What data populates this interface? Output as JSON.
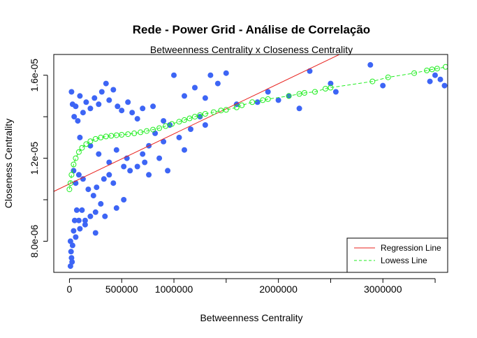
{
  "chart_data": {
    "type": "scatter",
    "title": "Rede - Power Grid - Análise de Correlação",
    "subtitle": "Betweenness Centrality x Closeness Centrality",
    "xlabel": "Betweenness Centrality",
    "ylabel": "Closeness Centrality",
    "xlim": [
      -150000,
      3620000
    ],
    "ylim": [
      6.5e-06,
      1.7e-05
    ],
    "x_ticks": [
      {
        "value": 0,
        "label": "0"
      },
      {
        "value": 500000,
        "label": "500000"
      },
      {
        "value": 1000000,
        "label": "1000000"
      },
      {
        "value": 1500000,
        "label": ""
      },
      {
        "value": 2000000,
        "label": "2000000"
      },
      {
        "value": 2500000,
        "label": ""
      },
      {
        "value": 3000000,
        "label": "3000000"
      },
      {
        "value": 3500000,
        "label": ""
      }
    ],
    "y_ticks": [
      {
        "value": 8e-06,
        "label": "8.0e-06"
      },
      {
        "value": 1e-05,
        "label": ""
      },
      {
        "value": 1.2e-05,
        "label": "1.2e-05"
      },
      {
        "value": 1.4e-05,
        "label": ""
      },
      {
        "value": 1.6e-05,
        "label": "1.6e-05"
      }
    ],
    "grid": false,
    "legend_position": "bottom-right",
    "colors": {
      "points": "#3d65f5",
      "regression": "#e8231f",
      "lowess": "#22ee22",
      "axis": "#000000"
    },
    "series": [
      {
        "name": "data",
        "kind": "points",
        "x": [
          20000,
          30000,
          45000,
          60000,
          80000,
          100000,
          130000,
          160000,
          200000,
          240000,
          280000,
          310000,
          350000,
          380000,
          420000,
          460000,
          500000,
          560000,
          600000,
          650000,
          700000,
          800000,
          900000,
          1000000,
          1100000,
          1200000,
          1300000,
          1350000,
          1420000,
          1500000,
          1600000,
          1800000,
          1900000,
          2000000,
          2100000,
          2200000,
          2300000,
          2500000,
          2550000,
          2880000,
          3000000,
          3450000,
          3500000,
          3550000,
          3590000,
          100000,
          200000,
          280000,
          380000,
          450000,
          550000,
          650000,
          700000,
          760000,
          820000,
          900000,
          960000,
          1050000,
          1100000,
          1160000,
          1250000,
          1300000,
          40000,
          60000,
          90000,
          130000,
          180000,
          230000,
          260000,
          330000,
          380000,
          420000,
          520000,
          580000,
          720000,
          760000,
          860000,
          940000,
          10000,
          15000,
          25000,
          40000,
          50000,
          70000,
          90000,
          120000,
          150000,
          200000,
          250000,
          300000,
          450000,
          520000,
          10000,
          20000,
          30000,
          60000,
          100000,
          150000,
          250000,
          340000
        ],
        "y": [
          1.52e-05,
          1.46e-05,
          1.4e-05,
          1.45e-05,
          1.38e-05,
          1.5e-05,
          1.42e-05,
          1.47e-05,
          1.44e-05,
          1.49e-05,
          1.46e-05,
          1.52e-05,
          1.56e-05,
          1.48e-05,
          1.53e-05,
          1.45e-05,
          1.43e-05,
          1.47e-05,
          1.42e-05,
          1.39e-05,
          1.44e-05,
          1.45e-05,
          1.38e-05,
          1.6e-05,
          1.5e-05,
          1.54e-05,
          1.49e-05,
          1.6e-05,
          1.56e-05,
          1.61e-05,
          1.46e-05,
          1.47e-05,
          1.52e-05,
          1.48e-05,
          1.5e-05,
          1.44e-05,
          1.62e-05,
          1.56e-05,
          1.52e-05,
          1.65e-05,
          1.55e-05,
          1.57e-05,
          1.6e-05,
          1.58e-05,
          1.55e-05,
          1.3e-05,
          1.26e-05,
          1.22e-05,
          1.18e-05,
          1.24e-05,
          1.2e-05,
          1.16e-05,
          1.22e-05,
          1.26e-05,
          1.32e-05,
          1.28e-05,
          1.36e-05,
          1.3e-05,
          1.24e-05,
          1.34e-05,
          1.4e-05,
          1.36e-05,
          1.14e-05,
          1.08e-05,
          1.12e-05,
          1.1e-05,
          1.05e-05,
          1.02e-05,
          1.06e-05,
          1.1e-05,
          1.12e-05,
          1.08e-05,
          1.16e-05,
          1.14e-05,
          1.18e-05,
          1.12e-05,
          1.2e-05,
          1.14e-05,
          8e-06,
          7.5e-06,
          7e-06,
          8.5e-06,
          9e-06,
          9.5e-06,
          9e-06,
          9.5e-06,
          8.8e-06,
          9.2e-06,
          9.4e-06,
          9.8e-06,
          9.6e-06,
          1e-05,
          6.8e-06,
          7.2e-06,
          7.8e-06,
          8.2e-06,
          8.6e-06,
          9e-06,
          8.4e-06,
          9.2e-06
        ]
      },
      {
        "name": "Regression Line",
        "kind": "line",
        "x": [
          -150000,
          3620000
        ],
        "y": [
          1.04e-05,
          1.95e-05
        ]
      },
      {
        "name": "Lowess Line",
        "kind": "lowess",
        "x": [
          0,
          10000,
          20000,
          40000,
          60000,
          90000,
          120000,
          160000,
          200000,
          250000,
          300000,
          350000,
          400000,
          450000,
          500000,
          560000,
          620000,
          680000,
          740000,
          800000,
          860000,
          920000,
          980000,
          1050000,
          1100000,
          1150000,
          1200000,
          1250000,
          1300000,
          1380000,
          1450000,
          1500000,
          1600000,
          1650000,
          1750000,
          1850000,
          1900000,
          2100000,
          2200000,
          2250000,
          2350000,
          2450000,
          2500000,
          2900000,
          3050000,
          3300000,
          3420000,
          3470000,
          3520000,
          3600000
        ],
        "y": [
          1.05e-05,
          1.08e-05,
          1.12e-05,
          1.17e-05,
          1.2e-05,
          1.23e-05,
          1.25e-05,
          1.268e-05,
          1.282e-05,
          1.293e-05,
          1.3e-05,
          1.305e-05,
          1.308e-05,
          1.311e-05,
          1.313e-05,
          1.316e-05,
          1.32e-05,
          1.325e-05,
          1.331e-05,
          1.338e-05,
          1.345e-05,
          1.355e-05,
          1.365e-05,
          1.376e-05,
          1.384e-05,
          1.392e-05,
          1.4e-05,
          1.408e-05,
          1.414e-05,
          1.422e-05,
          1.43e-05,
          1.433e-05,
          1.445e-05,
          1.455e-05,
          1.47e-05,
          1.48e-05,
          1.485e-05,
          1.5e-05,
          1.51e-05,
          1.515e-05,
          1.52e-05,
          1.535e-05,
          1.54e-05,
          1.57e-05,
          1.59e-05,
          1.61e-05,
          1.623e-05,
          1.628e-05,
          1.632e-05,
          1.64e-05
        ]
      }
    ],
    "legend": [
      {
        "label": "Regression Line",
        "style": "solid"
      },
      {
        "label": "Lowess Line",
        "style": "dashed"
      }
    ]
  }
}
